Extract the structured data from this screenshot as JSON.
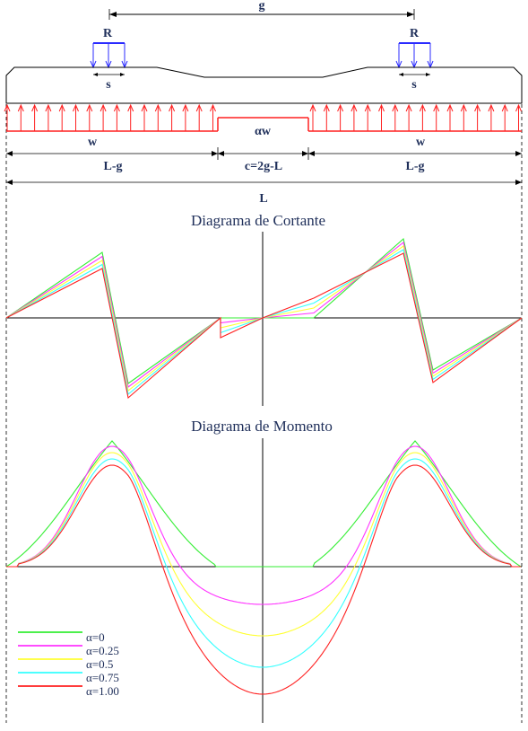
{
  "beam": {
    "g": "g",
    "R_left": "R",
    "R_right": "R",
    "s_left": "s",
    "s_right": "s",
    "w_left": "w",
    "w_right": "w",
    "alpha_w": "αw",
    "L_minus_g_left": "L-g",
    "c_label": "c=2g-L",
    "L_minus_g_right": "L-g",
    "L": "L"
  },
  "shear_title": "Diagrama de Cortante",
  "moment_title": "Diagrama de Momento",
  "colors": {
    "red": "#ff2020",
    "blue": "#2b2bff",
    "navy": "#1f2f5a",
    "alpha0": "#33ee33",
    "alpha025": "#ff33ff",
    "alpha05": "#ffff33",
    "alpha075": "#33ffff",
    "alpha100": "#ff2020"
  },
  "legend": [
    {
      "label": "α=0",
      "color": "#33ee33"
    },
    {
      "label": "α=0.25",
      "color": "#ff33ff"
    },
    {
      "label": "α=0.5",
      "color": "#ffff33"
    },
    {
      "label": "α=0.75",
      "color": "#33ffff"
    },
    {
      "label": "α=1.00",
      "color": "#ff2020"
    }
  ],
  "alphas": [
    0,
    0.25,
    0.5,
    0.75,
    1.0
  ]
}
